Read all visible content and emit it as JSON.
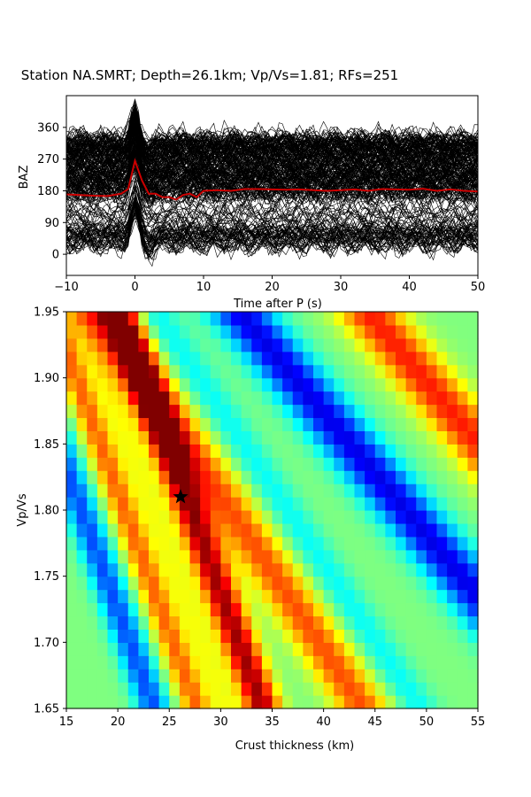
{
  "title": "Station NA.SMRT; Depth=26.1km; Vp/Vs=1.81; RFs=251",
  "chart_data": [
    {
      "type": "line",
      "panel": "receiver-functions",
      "xlabel": "Time after P (s)",
      "ylabel": "BAZ",
      "xlim": [
        -10,
        50
      ],
      "ylim": [
        -60,
        450
      ],
      "xticks": [
        "−10",
        "0",
        "10",
        "20",
        "30",
        "40",
        "50"
      ],
      "yticks": [
        "0",
        "90",
        "180",
        "270",
        "360"
      ],
      "trace_count": 251,
      "trace_color": "#000000",
      "stack": {
        "name": "",
        "color": "#cc0000",
        "x": [
          -10,
          -8,
          -6,
          -4,
          -2,
          -1,
          0,
          1,
          2,
          3,
          4,
          5,
          6,
          7,
          8,
          9,
          10,
          12,
          14,
          16,
          18,
          20,
          22,
          24,
          26,
          28,
          30,
          32,
          34,
          36,
          38,
          40,
          42,
          44,
          46,
          48,
          50
        ],
        "y": [
          170,
          168,
          166,
          165,
          172,
          185,
          265,
          210,
          172,
          172,
          162,
          162,
          155,
          168,
          172,
          162,
          180,
          182,
          180,
          185,
          185,
          184,
          183,
          184,
          182,
          180,
          182,
          184,
          180,
          185,
          184,
          183,
          186,
          180,
          184,
          180,
          178
        ]
      }
    },
    {
      "type": "heatmap",
      "panel": "h-k-stack",
      "xlabel": "Crust thickness (km)",
      "ylabel": "Vp/Vs",
      "xlim": [
        15,
        55
      ],
      "ylim": [
        1.65,
        1.95
      ],
      "xticks": [
        "15",
        "20",
        "25",
        "30",
        "35",
        "40",
        "45",
        "50",
        "55"
      ],
      "yticks": [
        "1.65",
        "1.70",
        "1.75",
        "1.80",
        "1.85",
        "1.90",
        "1.95"
      ],
      "colormap": "jet",
      "grid": {
        "nx": 40,
        "ny": 30
      },
      "max_point": {
        "h": 26.1,
        "k": 1.81,
        "marker": "star",
        "color": "#000000"
      }
    }
  ]
}
